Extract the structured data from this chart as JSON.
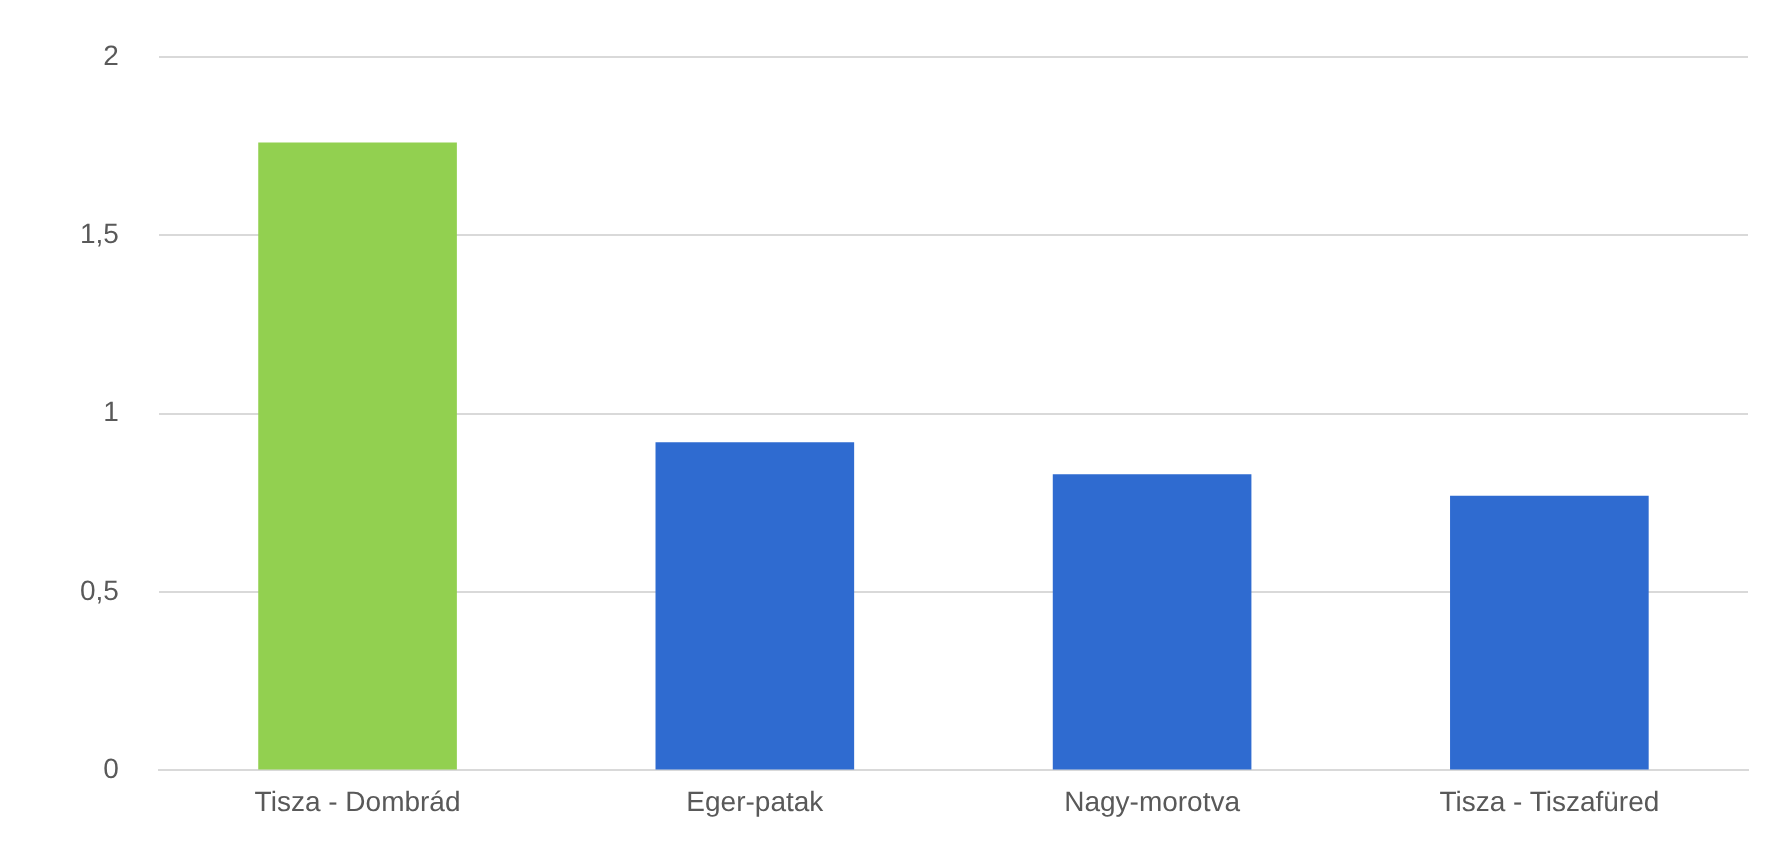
{
  "chart_data": {
    "type": "bar",
    "categories": [
      "Tisza - Dombrád",
      "Eger-patak",
      "Nagy-morotva",
      "Tisza - Tiszafüred"
    ],
    "values": [
      1.76,
      0.92,
      0.83,
      0.77
    ],
    "colors": [
      "#92d050",
      "#2f6bd0",
      "#2f6bd0",
      "#2f6bd0"
    ],
    "ylim": [
      0,
      2
    ],
    "yticks": [
      0,
      {
        "value": 0.5,
        "label": "0,5"
      },
      1,
      {
        "value": 1.5,
        "label": "1,5"
      },
      2
    ],
    "grid": "y",
    "legend": false
  }
}
